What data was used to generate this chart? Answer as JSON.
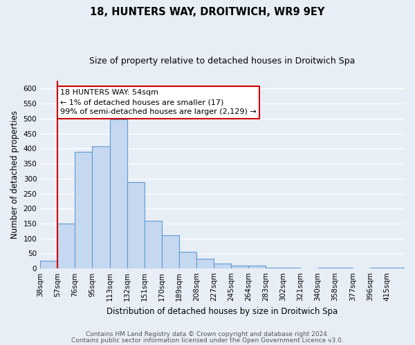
{
  "title": "18, HUNTERS WAY, DROITWICH, WR9 9EY",
  "subtitle": "Size of property relative to detached houses in Droitwich Spa",
  "xlabel": "Distribution of detached houses by size in Droitwich Spa",
  "ylabel": "Number of detached properties",
  "bar_labels": [
    "38sqm",
    "57sqm",
    "76sqm",
    "95sqm",
    "113sqm",
    "132sqm",
    "151sqm",
    "170sqm",
    "189sqm",
    "208sqm",
    "227sqm",
    "245sqm",
    "264sqm",
    "283sqm",
    "302sqm",
    "321sqm",
    "340sqm",
    "358sqm",
    "377sqm",
    "396sqm",
    "415sqm"
  ],
  "bar_values": [
    25,
    150,
    390,
    408,
    498,
    288,
    158,
    110,
    55,
    32,
    16,
    10,
    10,
    2,
    2,
    0,
    2,
    2,
    0,
    2,
    2
  ],
  "bar_color": "#c5d8f0",
  "bar_edge_color": "#5b9bd5",
  "bar_width": 1.0,
  "ylim": [
    0,
    625
  ],
  "yticks": [
    0,
    50,
    100,
    150,
    200,
    250,
    300,
    350,
    400,
    450,
    500,
    550,
    600
  ],
  "vline_x": 1,
  "vline_color": "#cc0000",
  "annotation_box_text": "18 HUNTERS WAY: 54sqm\n← 1% of detached houses are smaller (17)\n99% of semi-detached houses are larger (2,129) →",
  "footer_line1": "Contains HM Land Registry data © Crown copyright and database right 2024.",
  "footer_line2": "Contains public sector information licensed under the Open Government Licence v3.0.",
  "background_color": "#e8eef5",
  "plot_background_color": "#e8eef5",
  "grid_color": "#ffffff",
  "title_fontsize": 10.5,
  "subtitle_fontsize": 9,
  "axis_label_fontsize": 8.5,
  "tick_fontsize": 7.5,
  "annotation_fontsize": 8,
  "footer_fontsize": 6.5
}
